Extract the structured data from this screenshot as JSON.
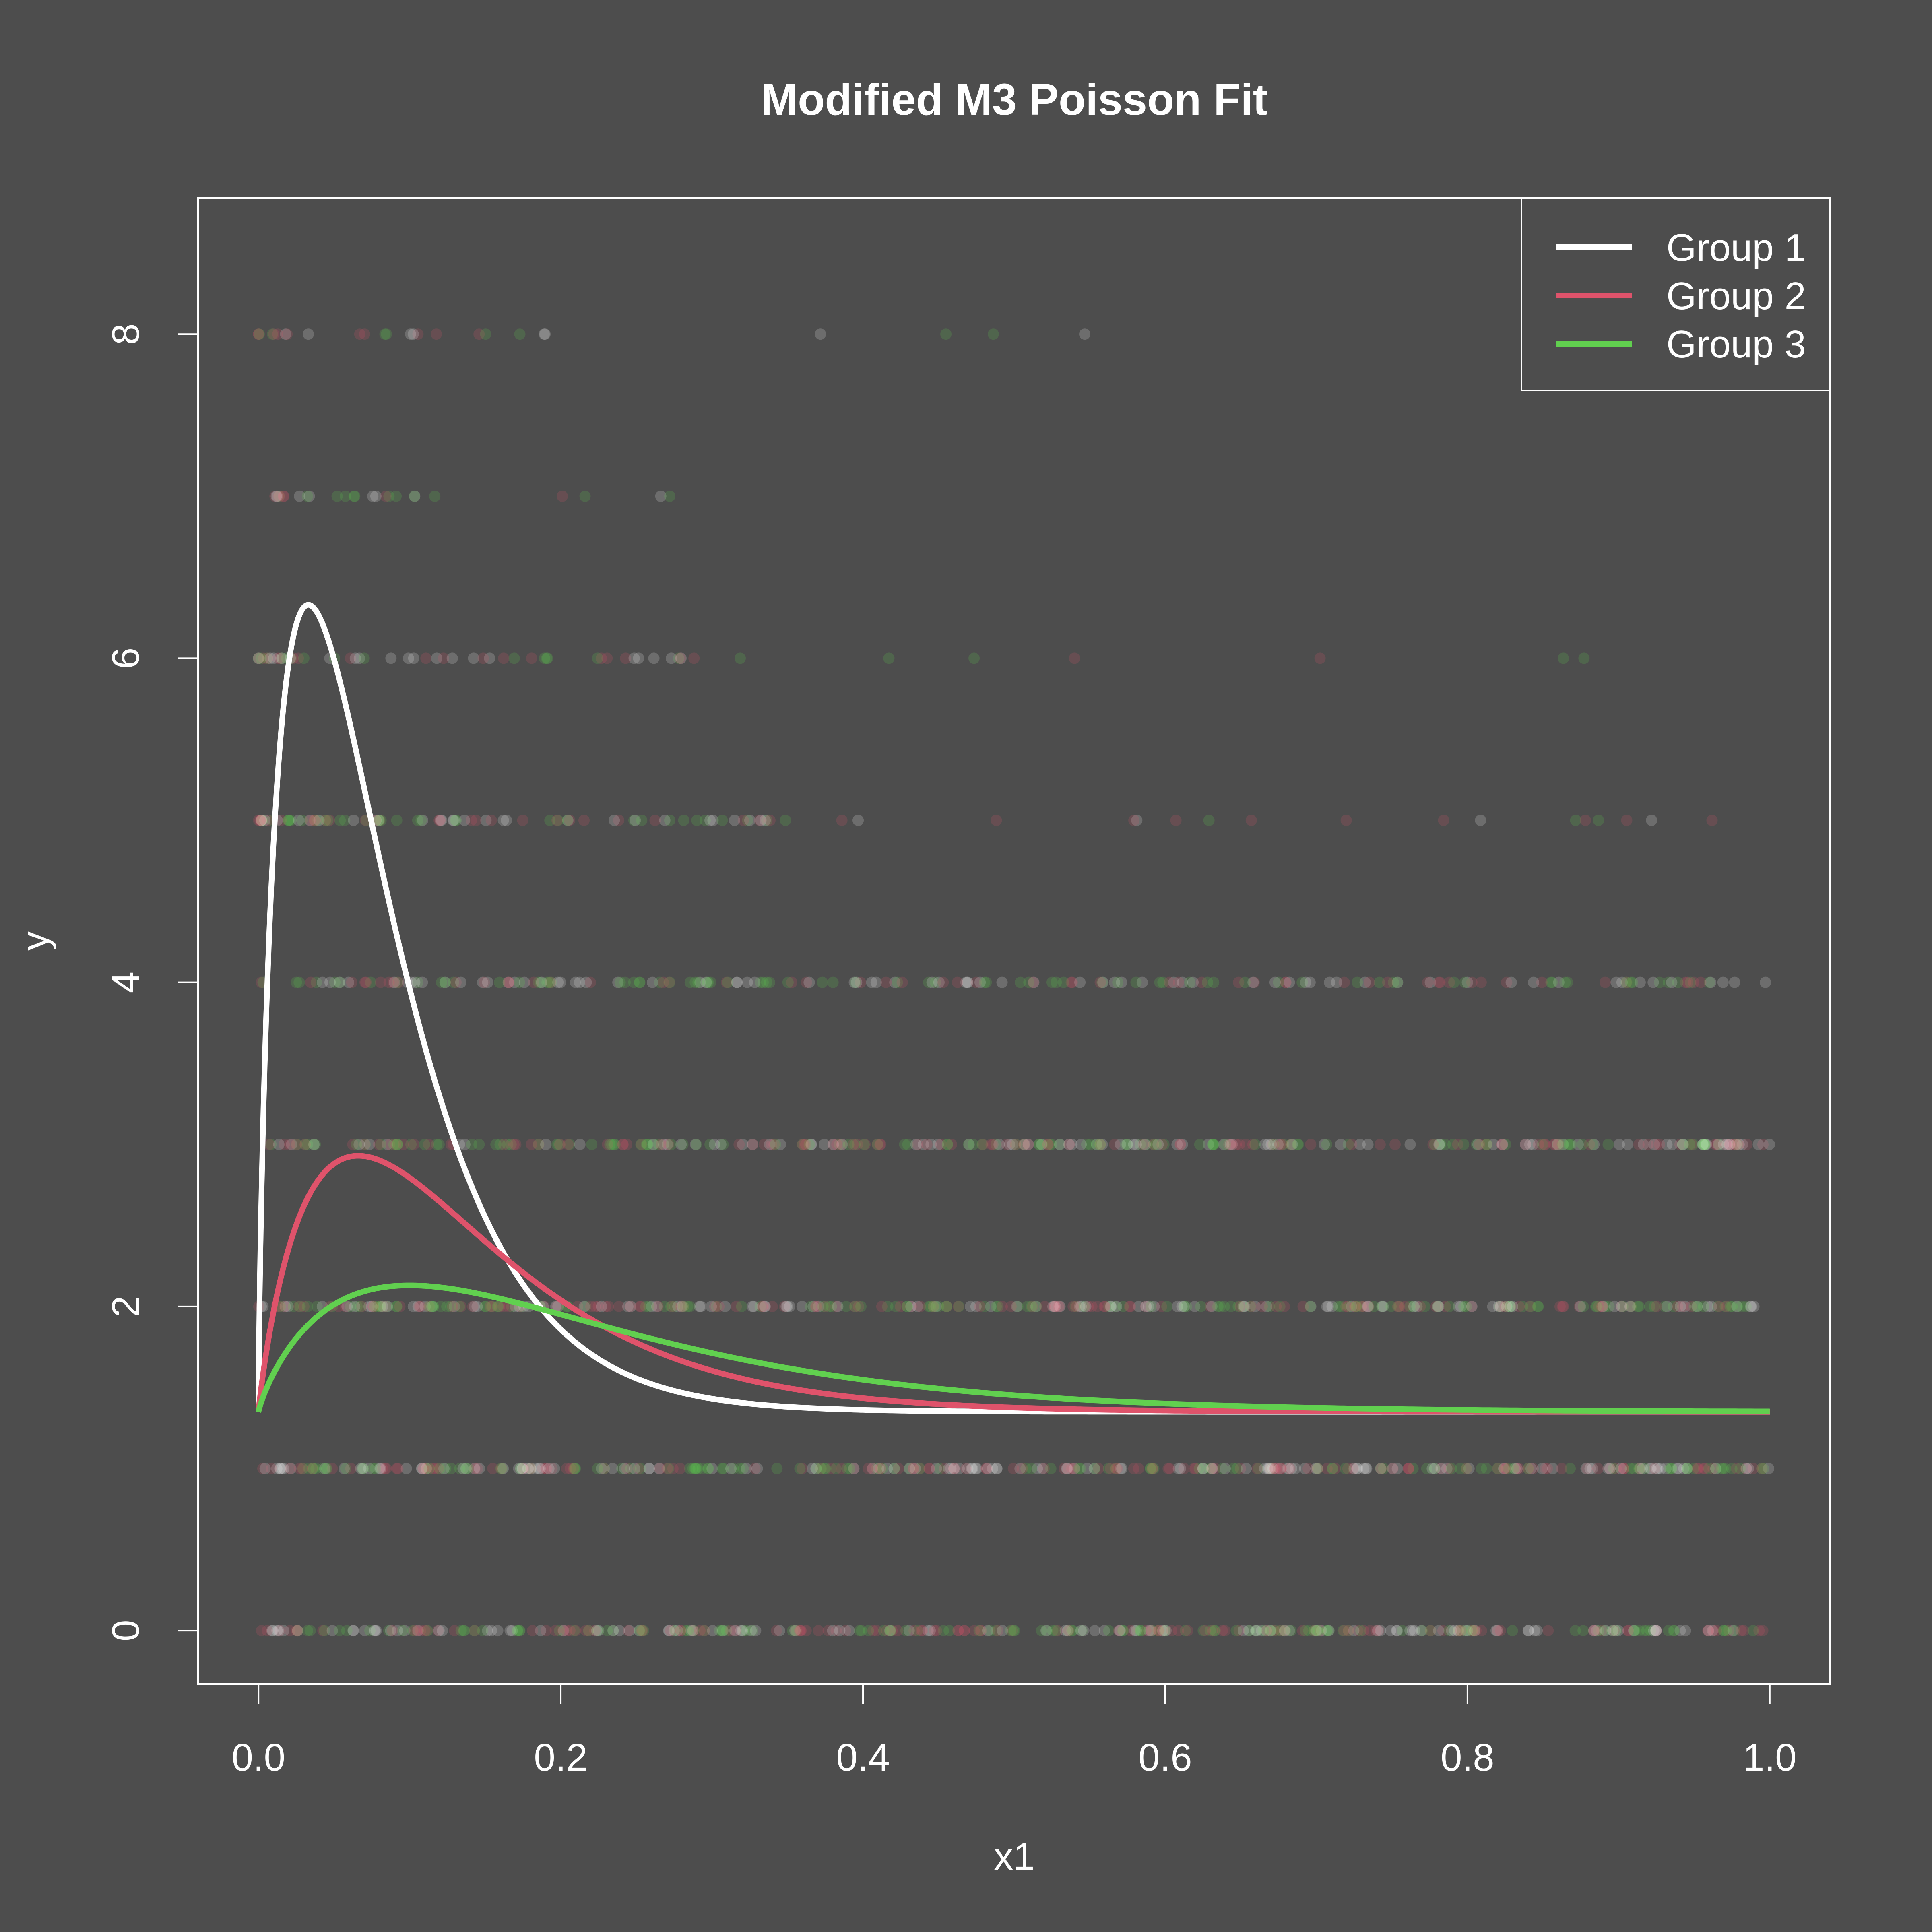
{
  "chart_data": {
    "type": "scatter",
    "title": "Modified M3 Poisson Fit",
    "xlabel": "x1",
    "ylabel": "y",
    "xlim": [
      -0.04,
      1.04
    ],
    "ylim": [
      -0.33,
      8.84
    ],
    "xticks": [
      0.0,
      0.2,
      0.4,
      0.6,
      0.8,
      1.0
    ],
    "xtick_labels": [
      "0.0",
      "0.2",
      "0.4",
      "0.6",
      "0.8",
      "1.0"
    ],
    "yticks": [
      0,
      2,
      4,
      6,
      8
    ],
    "ytick_labels": [
      "0",
      "2",
      "4",
      "6",
      "8"
    ],
    "grid": false,
    "legend_position": "top-right",
    "background": "#4d4d4d",
    "foreground": "#ffffff",
    "series": [
      {
        "name": "Group 1",
        "color": "#ffffff",
        "fit": {
          "peak_x": 0.033,
          "peak_y": 6.33
        }
      },
      {
        "name": "Group 2",
        "color": "#df536b",
        "fit": {
          "peak_x": 0.066,
          "peak_y": 2.93
        }
      },
      {
        "name": "Group 3",
        "color": "#61d04f",
        "fit": {
          "peak_x": 0.1,
          "peak_y": 2.13
        }
      }
    ],
    "fit_baseline": 1.35,
    "observed_y_levels": [
      0,
      1,
      2,
      3,
      4,
      5,
      6,
      7,
      8
    ],
    "observed_x_extent": {
      "0": [
        0.0,
        1.0
      ],
      "1": [
        0.0,
        1.0
      ],
      "2": [
        0.0,
        1.0
      ],
      "3": [
        0.0,
        1.0
      ],
      "4": [
        0.0,
        1.0
      ],
      "5": [
        0.0,
        1.0
      ],
      "6": [
        0.0,
        0.95
      ],
      "7": [
        0.01,
        0.32
      ],
      "8": [
        0.0,
        0.57
      ]
    }
  }
}
